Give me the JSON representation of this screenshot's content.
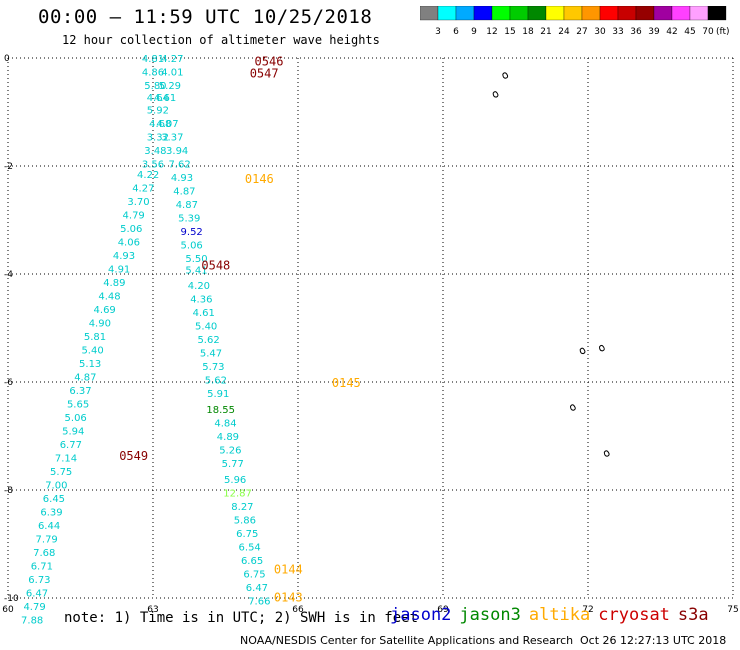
{
  "header": {
    "title": "00:00 — 11:59 UTC 10/25/2018",
    "subtitle": "12 hour collection of altimeter wave heights"
  },
  "colorbar": {
    "unit": "(ft)",
    "labels": [
      "3",
      "6",
      "9",
      "12",
      "15",
      "18",
      "21",
      "24",
      "27",
      "30",
      "33",
      "36",
      "39",
      "42",
      "45",
      "70"
    ],
    "colors": [
      "#808080",
      "#00ffff",
      "#00aaff",
      "#0000ff",
      "#00ff00",
      "#00cc00",
      "#008800",
      "#ffff00",
      "#ffc800",
      "#ff9600",
      "#ff0000",
      "#c80000",
      "#960000",
      "#a000a0",
      "#ff40ff",
      "#ffa0ff",
      "#000000"
    ]
  },
  "footer": {
    "note": "note: 1) Time is in UTC; 2) SWH is in feet",
    "legend": [
      {
        "label": "jason2",
        "color": "#0000cc"
      },
      {
        "label": "jason3",
        "color": "#008800"
      },
      {
        "label": "altika",
        "color": "#ffaa00"
      },
      {
        "label": "cryosat",
        "color": "#cc0000"
      },
      {
        "label": "s3a",
        "color": "#880000"
      }
    ],
    "credit": "NOAA/NESDIS Center for Satellite Applications and Research",
    "timestamp": "Oct 26 12:27:13 UTC 2018"
  },
  "chart_data": {
    "type": "scatter",
    "xlim": [
      60,
      75
    ],
    "ylim": [
      -10,
      0
    ],
    "xticks": [
      "60",
      "63",
      "66",
      "69",
      "72",
      "75"
    ],
    "yticks": [
      "0",
      "-2",
      "-4",
      "-6",
      "-8",
      "-10"
    ],
    "grid": true,
    "time_labels": [
      {
        "text": "0546",
        "x": 65.4,
        "y": -0.05,
        "color": "#880000"
      },
      {
        "text": "0547",
        "x": 65.3,
        "y": -0.27,
        "color": "#880000"
      },
      {
        "text": "0146",
        "x": 65.2,
        "y": -2.22,
        "color": "#ffaa00"
      },
      {
        "text": "0548",
        "x": 64.3,
        "y": -3.82,
        "color": "#880000"
      },
      {
        "text": "0145",
        "x": 67.0,
        "y": -6.0,
        "color": "#ffaa00"
      },
      {
        "text": "0549",
        "x": 62.6,
        "y": -7.35,
        "color": "#880000"
      },
      {
        "text": "0144",
        "x": 65.8,
        "y": -9.45,
        "color": "#ffaa00"
      },
      {
        "text": "0143",
        "x": 65.8,
        "y": -9.97,
        "color": "#ffaa00"
      }
    ],
    "points": [
      {
        "x": 63.0,
        "y": 0.0,
        "v": "4.81",
        "c": "#00cccc"
      },
      {
        "x": 63.4,
        "y": 0.0,
        "v": "4.27",
        "c": "#00cccc"
      },
      {
        "x": 63.0,
        "y": -0.25,
        "v": "4.86",
        "c": "#00cccc"
      },
      {
        "x": 63.4,
        "y": -0.25,
        "v": "4.01",
        "c": "#00cccc"
      },
      {
        "x": 63.05,
        "y": -0.5,
        "v": "5.80",
        "c": "#00cccc"
      },
      {
        "x": 63.35,
        "y": -0.5,
        "v": "5.29",
        "c": "#00cccc"
      },
      {
        "x": 63.1,
        "y": -0.72,
        "v": "4.64",
        "c": "#00cccc"
      },
      {
        "x": 63.25,
        "y": -0.72,
        "v": "4.61",
        "c": "#00cccc"
      },
      {
        "x": 63.1,
        "y": -0.95,
        "v": "5.92",
        "c": "#00cccc"
      },
      {
        "x": 63.15,
        "y": -1.2,
        "v": "4.68",
        "c": "#00cccc"
      },
      {
        "x": 63.3,
        "y": -1.2,
        "v": "4.07",
        "c": "#00cccc"
      },
      {
        "x": 63.1,
        "y": -1.45,
        "v": "3.32",
        "c": "#00cccc"
      },
      {
        "x": 63.4,
        "y": -1.45,
        "v": "3.37",
        "c": "#00cccc"
      },
      {
        "x": 63.05,
        "y": -1.7,
        "v": "3.48",
        "c": "#00cccc"
      },
      {
        "x": 63.5,
        "y": -1.7,
        "v": "3.94",
        "c": "#00cccc"
      },
      {
        "x": 63.0,
        "y": -1.95,
        "v": "3.56",
        "c": "#00cccc"
      },
      {
        "x": 63.55,
        "y": -1.95,
        "v": "7.62",
        "c": "#00cccc"
      },
      {
        "x": 62.9,
        "y": -2.15,
        "v": "4.22",
        "c": "#00cccc"
      },
      {
        "x": 63.6,
        "y": -2.2,
        "v": "4.93",
        "c": "#00cccc"
      },
      {
        "x": 62.8,
        "y": -2.4,
        "v": "4.27",
        "c": "#00cccc"
      },
      {
        "x": 63.65,
        "y": -2.45,
        "v": "4.87",
        "c": "#00cccc"
      },
      {
        "x": 62.7,
        "y": -2.65,
        "v": "3.70",
        "c": "#00cccc"
      },
      {
        "x": 63.7,
        "y": -2.7,
        "v": "4.87",
        "c": "#00cccc"
      },
      {
        "x": 62.6,
        "y": -2.9,
        "v": "4.79",
        "c": "#00cccc"
      },
      {
        "x": 63.75,
        "y": -2.95,
        "v": "5.39",
        "c": "#00cccc"
      },
      {
        "x": 62.55,
        "y": -3.15,
        "v": "5.06",
        "c": "#00cccc"
      },
      {
        "x": 63.8,
        "y": -3.2,
        "v": "9.52",
        "c": "#0000cc"
      },
      {
        "x": 62.5,
        "y": -3.4,
        "v": "4.06",
        "c": "#00cccc"
      },
      {
        "x": 63.8,
        "y": -3.45,
        "v": "5.06",
        "c": "#00cccc"
      },
      {
        "x": 62.4,
        "y": -3.65,
        "v": "4.93",
        "c": "#00cccc"
      },
      {
        "x": 63.9,
        "y": -3.7,
        "v": "5.50",
        "c": "#00cccc"
      },
      {
        "x": 62.3,
        "y": -3.9,
        "v": "4.91",
        "c": "#00cccc"
      },
      {
        "x": 63.9,
        "y": -3.92,
        "v": "5.41",
        "c": "#00cccc"
      },
      {
        "x": 62.2,
        "y": -4.15,
        "v": "4.89",
        "c": "#00cccc"
      },
      {
        "x": 63.95,
        "y": -4.2,
        "v": "4.20",
        "c": "#00cccc"
      },
      {
        "x": 62.1,
        "y": -4.4,
        "v": "4.48",
        "c": "#00cccc"
      },
      {
        "x": 64.0,
        "y": -4.45,
        "v": "4.36",
        "c": "#00cccc"
      },
      {
        "x": 62.0,
        "y": -4.65,
        "v": "4.69",
        "c": "#00cccc"
      },
      {
        "x": 64.05,
        "y": -4.7,
        "v": "4.61",
        "c": "#00cccc"
      },
      {
        "x": 61.9,
        "y": -4.9,
        "v": "4.90",
        "c": "#00cccc"
      },
      {
        "x": 64.1,
        "y": -4.95,
        "v": "5.40",
        "c": "#00cccc"
      },
      {
        "x": 61.8,
        "y": -5.15,
        "v": "5.81",
        "c": "#00cccc"
      },
      {
        "x": 64.15,
        "y": -5.2,
        "v": "5.62",
        "c": "#00cccc"
      },
      {
        "x": 61.75,
        "y": -5.4,
        "v": "5.40",
        "c": "#00cccc"
      },
      {
        "x": 64.2,
        "y": -5.45,
        "v": "5.47",
        "c": "#00cccc"
      },
      {
        "x": 61.7,
        "y": -5.65,
        "v": "5.13",
        "c": "#00cccc"
      },
      {
        "x": 64.25,
        "y": -5.7,
        "v": "5.73",
        "c": "#00cccc"
      },
      {
        "x": 61.6,
        "y": -5.9,
        "v": "4.87",
        "c": "#00cccc"
      },
      {
        "x": 64.3,
        "y": -5.95,
        "v": "5.62",
        "c": "#00cccc"
      },
      {
        "x": 61.5,
        "y": -6.15,
        "v": "6.37",
        "c": "#00cccc"
      },
      {
        "x": 64.35,
        "y": -6.2,
        "v": "5.91",
        "c": "#00cccc"
      },
      {
        "x": 61.45,
        "y": -6.4,
        "v": "5.65",
        "c": "#00cccc"
      },
      {
        "x": 61.4,
        "y": -6.65,
        "v": "5.06",
        "c": "#00cccc"
      },
      {
        "x": 64.4,
        "y": -6.5,
        "v": "18.55",
        "c": "#008800"
      },
      {
        "x": 61.35,
        "y": -6.9,
        "v": "5.94",
        "c": "#00cccc"
      },
      {
        "x": 64.5,
        "y": -6.75,
        "v": "4.84",
        "c": "#00cccc"
      },
      {
        "x": 61.3,
        "y": -7.15,
        "v": "6.77",
        "c": "#00cccc"
      },
      {
        "x": 64.55,
        "y": -7.0,
        "v": "4.89",
        "c": "#00cccc"
      },
      {
        "x": 61.2,
        "y": -7.4,
        "v": "7.14",
        "c": "#00cccc"
      },
      {
        "x": 64.6,
        "y": -7.25,
        "v": "5.26",
        "c": "#00cccc"
      },
      {
        "x": 61.1,
        "y": -7.65,
        "v": "5.75",
        "c": "#00cccc"
      },
      {
        "x": 64.65,
        "y": -7.5,
        "v": "5.77",
        "c": "#00cccc"
      },
      {
        "x": 61.0,
        "y": -7.9,
        "v": "7.00",
        "c": "#00cccc"
      },
      {
        "x": 64.7,
        "y": -7.8,
        "v": "5.96",
        "c": "#00cccc"
      },
      {
        "x": 60.95,
        "y": -8.15,
        "v": "6.45",
        "c": "#00cccc"
      },
      {
        "x": 64.75,
        "y": -8.05,
        "v": "12.87",
        "c": "#88ff44"
      },
      {
        "x": 60.9,
        "y": -8.4,
        "v": "6.39",
        "c": "#00cccc"
      },
      {
        "x": 64.85,
        "y": -8.3,
        "v": "8.27",
        "c": "#00cccc"
      },
      {
        "x": 60.85,
        "y": -8.65,
        "v": "6.44",
        "c": "#00cccc"
      },
      {
        "x": 64.9,
        "y": -8.55,
        "v": "5.86",
        "c": "#00cccc"
      },
      {
        "x": 60.8,
        "y": -8.9,
        "v": "7.79",
        "c": "#00cccc"
      },
      {
        "x": 64.95,
        "y": -8.8,
        "v": "6.75",
        "c": "#00cccc"
      },
      {
        "x": 60.75,
        "y": -9.15,
        "v": "7.68",
        "c": "#00cccc"
      },
      {
        "x": 65.0,
        "y": -9.05,
        "v": "6.54",
        "c": "#00cccc"
      },
      {
        "x": 60.7,
        "y": -9.4,
        "v": "6.71",
        "c": "#00cccc"
      },
      {
        "x": 65.05,
        "y": -9.3,
        "v": "6.65",
        "c": "#00cccc"
      },
      {
        "x": 60.65,
        "y": -9.65,
        "v": "6.73",
        "c": "#00cccc"
      },
      {
        "x": 65.1,
        "y": -9.55,
        "v": "6.75",
        "c": "#00cccc"
      },
      {
        "x": 60.6,
        "y": -9.9,
        "v": "6.47",
        "c": "#00cccc"
      },
      {
        "x": 65.15,
        "y": -9.8,
        "v": "6.47",
        "c": "#00cccc"
      },
      {
        "x": 60.55,
        "y": -10.15,
        "v": "4.79",
        "c": "#00cccc"
      },
      {
        "x": 65.2,
        "y": -10.05,
        "v": "7.66",
        "c": "#00cccc"
      },
      {
        "x": 60.5,
        "y": -10.4,
        "v": "7.88",
        "c": "#00cccc"
      }
    ],
    "islands": [
      {
        "x": 70.3,
        "y": -0.3
      },
      {
        "x": 70.1,
        "y": -0.65
      },
      {
        "x": 71.9,
        "y": -5.4
      },
      {
        "x": 72.3,
        "y": -5.35
      },
      {
        "x": 71.7,
        "y": -6.45
      },
      {
        "x": 72.4,
        "y": -7.3
      }
    ]
  }
}
